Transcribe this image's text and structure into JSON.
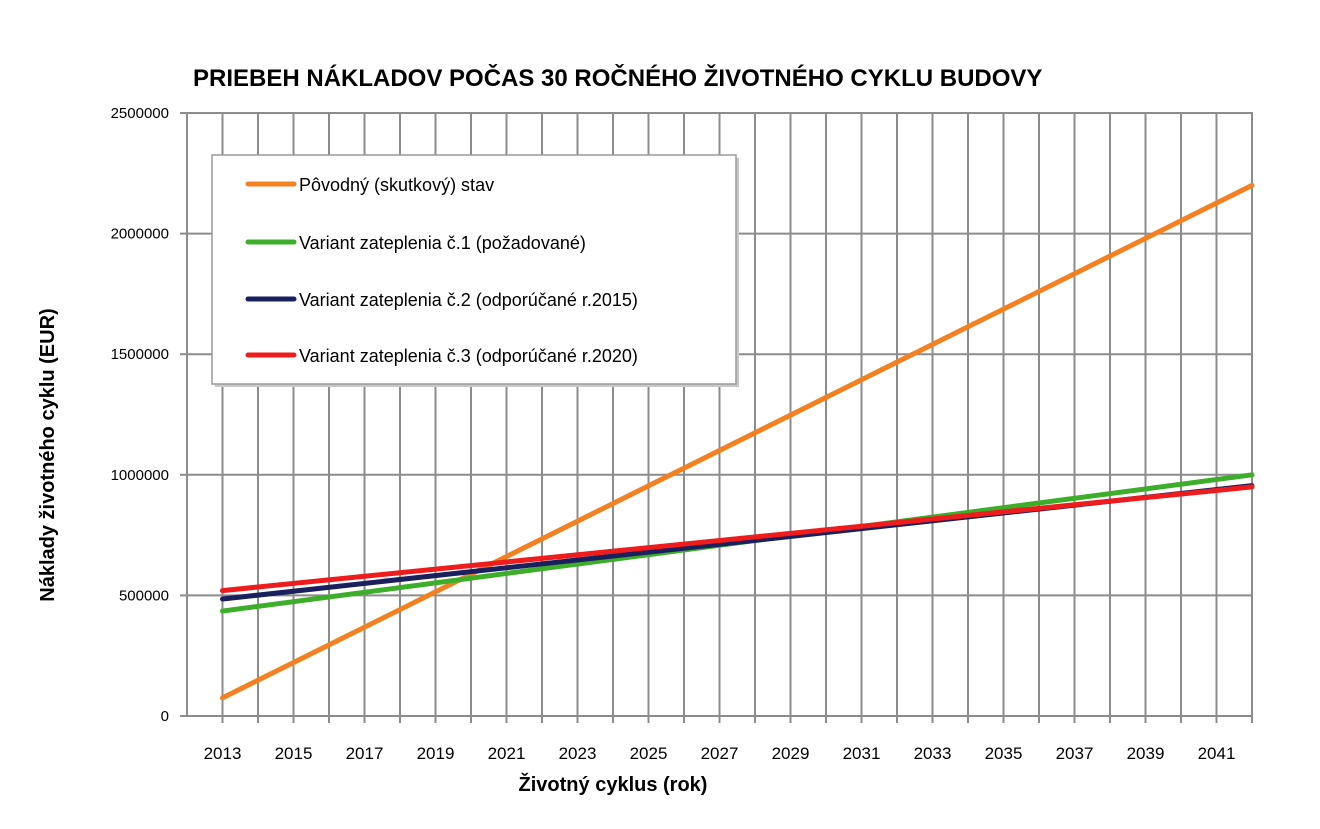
{
  "chart_data": {
    "type": "line",
    "title": "PRIEBEH NÁKLADOV POČAS 30 ROČNÉHO ŽIVOTNÉHO CYKLU BUDOVY",
    "xlabel": "Životný cyklus (rok)",
    "ylabel": "Náklady životného cyklu (EUR)",
    "ylim": [
      0,
      2500000
    ],
    "xlim": [
      2012,
      2042
    ],
    "grid": true,
    "legend_position": "top-left",
    "y_ticks": [
      "0",
      "500000",
      "1000000",
      "1500000",
      "2000000",
      "2500000"
    ],
    "x_ticks": [
      "2013",
      "2015",
      "2017",
      "2019",
      "2021",
      "2023",
      "2025",
      "2027",
      "2029",
      "2031",
      "2033",
      "2035",
      "2037",
      "2039",
      "2041"
    ],
    "x": [
      2013,
      2042
    ],
    "series": [
      {
        "name": "Pôvodný (skutkový) stav",
        "color": "#f4801f",
        "x": [
          2013,
          2042
        ],
        "values": [
          75000,
          2200000
        ]
      },
      {
        "name": "Variant zateplenia č.1 (požadované)",
        "color": "#3cae2a",
        "x": [
          2013,
          2042
        ],
        "values": [
          435000,
          1000000
        ]
      },
      {
        "name": "Variant zateplenia č.2 (odporúčané r.2015)",
        "color": "#1a1f5e",
        "x": [
          2013,
          2042
        ],
        "values": [
          485000,
          955000
        ]
      },
      {
        "name": "Variant zateplenia č.3  (odporúčané r.2020)",
        "color": "#ee1c1c",
        "x": [
          2013,
          2042
        ],
        "values": [
          520000,
          950000
        ]
      }
    ]
  }
}
